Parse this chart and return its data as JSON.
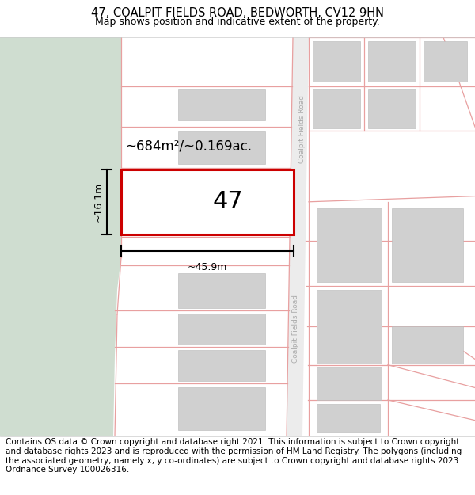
{
  "title": "47, COALPIT FIELDS ROAD, BEDWORTH, CV12 9HN",
  "subtitle": "Map shows position and indicative extent of the property.",
  "footer": "Contains OS data © Crown copyright and database right 2021. This information is subject to Crown copyright and database rights 2023 and is reproduced with the permission of HM Land Registry. The polygons (including the associated geometry, namely x, y co-ordinates) are subject to Crown copyright and database rights 2023 Ordnance Survey 100026316.",
  "map_bg": "#f5f5f5",
  "green_area_color": "#cfddd0",
  "road_label": "Coalpit Fields Road",
  "highlight_color": "#cc0000",
  "highlight_fill": "#ffffff",
  "plot_label": "47",
  "area_label": "~684m²/~0.169ac.",
  "width_label": "~45.9m",
  "height_label": "~16.1m",
  "outline_color": "#e8a0a0",
  "bld_color": "#d0d0d0",
  "title_fontsize": 10.5,
  "subtitle_fontsize": 9,
  "footer_fontsize": 7.5
}
